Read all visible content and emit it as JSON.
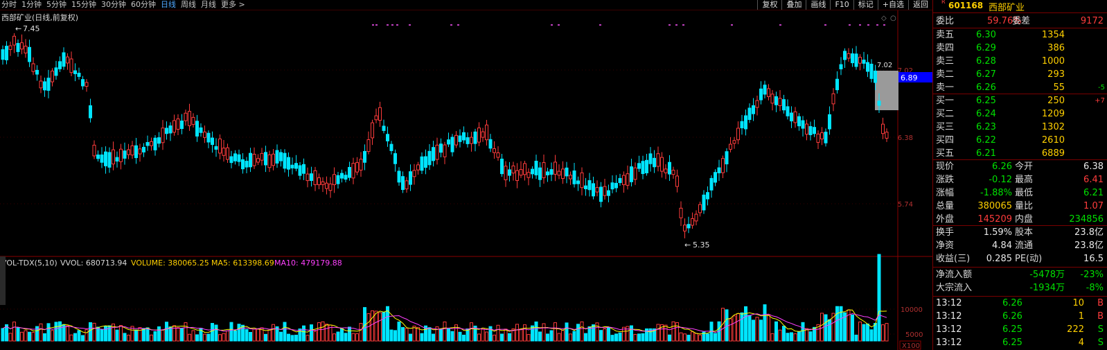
{
  "toolbar": {
    "periods": [
      "分时",
      "1分钟",
      "5分钟",
      "15分钟",
      "30分钟",
      "60分钟",
      "日线",
      "周线",
      "月线",
      "更多 >"
    ],
    "active_period": "日线",
    "buttons": [
      "复权",
      "叠加",
      "画线",
      "F10",
      "标记",
      "+自选",
      "返回"
    ]
  },
  "kline": {
    "title": "西部矿业(日线,前复权)",
    "price_axis": [
      "7.02",
      "6.38",
      "5.74"
    ],
    "high_mark": "7.45",
    "low_mark": "5.35",
    "current_tag": "6.89",
    "right_mark": "7.02"
  },
  "volume": {
    "indicator": "VOL-TDX(5,10)",
    "vvol": "VVOL: 680713.94",
    "volume": "VOLUME: 380065.25",
    "ma5": "MA5: 613398.69",
    "ma10": "MA10: 479179.88",
    "axis": [
      "10000",
      "5000"
    ],
    "unit": "X100"
  },
  "colors": {
    "up": "#ff3c3c",
    "down": "#00e5ff",
    "ma5": "#ffff00",
    "ma10": "#ff40ff",
    "active_tab": "#4fa8ff",
    "price_tag": "#0000ff"
  },
  "stock": {
    "code": "601168",
    "name": "西部矿业",
    "mark": "R"
  },
  "ratio": {
    "label1": "委比",
    "value1": "59.76%",
    "label2": "委差",
    "value2": "9172"
  },
  "asks": [
    {
      "label": "卖五",
      "price": "6.30",
      "vol": "1354",
      "chg": ""
    },
    {
      "label": "卖四",
      "price": "6.29",
      "vol": "386",
      "chg": ""
    },
    {
      "label": "卖三",
      "price": "6.28",
      "vol": "1000",
      "chg": ""
    },
    {
      "label": "卖二",
      "price": "6.27",
      "vol": "293",
      "chg": ""
    },
    {
      "label": "卖一",
      "price": "6.26",
      "vol": "55",
      "chg": "-5"
    }
  ],
  "bids": [
    {
      "label": "买一",
      "price": "6.25",
      "vol": "250",
      "chg": "+7"
    },
    {
      "label": "买二",
      "price": "6.24",
      "vol": "1209",
      "chg": ""
    },
    {
      "label": "买三",
      "price": "6.23",
      "vol": "1302",
      "chg": ""
    },
    {
      "label": "买四",
      "price": "6.22",
      "vol": "2610",
      "chg": ""
    },
    {
      "label": "买五",
      "price": "6.21",
      "vol": "6889",
      "chg": ""
    }
  ],
  "quote": [
    {
      "l1": "现价",
      "v1": "6.26",
      "c1": "green",
      "l2": "今开",
      "v2": "6.38",
      "c2": "white"
    },
    {
      "l1": "涨跌",
      "v1": "-0.12",
      "c1": "green",
      "l2": "最高",
      "v2": "6.41",
      "c2": "red"
    },
    {
      "l1": "涨幅",
      "v1": "-1.88%",
      "c1": "green",
      "l2": "最低",
      "v2": "6.21",
      "c2": "green"
    },
    {
      "l1": "总量",
      "v1": "380065",
      "c1": "yellow",
      "l2": "量比",
      "v2": "1.07",
      "c2": "red"
    },
    {
      "l1": "外盘",
      "v1": "145209",
      "c1": "red",
      "l2": "内盘",
      "v2": "234856",
      "c2": "green"
    }
  ],
  "fundamentals": [
    {
      "l1": "换手",
      "v1": "1.59%",
      "l2": "股本",
      "v2": "23.8亿"
    },
    {
      "l1": "净资",
      "v1": "4.84",
      "l2": "流通",
      "v2": "23.8亿"
    },
    {
      "l1": "收益(三)",
      "v1": "0.285",
      "l2": "PE(动)",
      "v2": "16.5"
    }
  ],
  "flows": [
    {
      "label": "净流入额",
      "value": "-5478万",
      "pct": "-23%"
    },
    {
      "label": "大宗流入",
      "value": "-1934万",
      "pct": "-8%"
    }
  ],
  "ticks": [
    {
      "time": "13:12",
      "price": "6.26",
      "vol": "10",
      "side": "B"
    },
    {
      "time": "13:12",
      "price": "6.26",
      "vol": "1",
      "side": "B"
    },
    {
      "time": "13:12",
      "price": "6.25",
      "vol": "222",
      "side": "S"
    },
    {
      "time": "13:12",
      "price": "6.25",
      "vol": "4",
      "side": "S"
    }
  ]
}
